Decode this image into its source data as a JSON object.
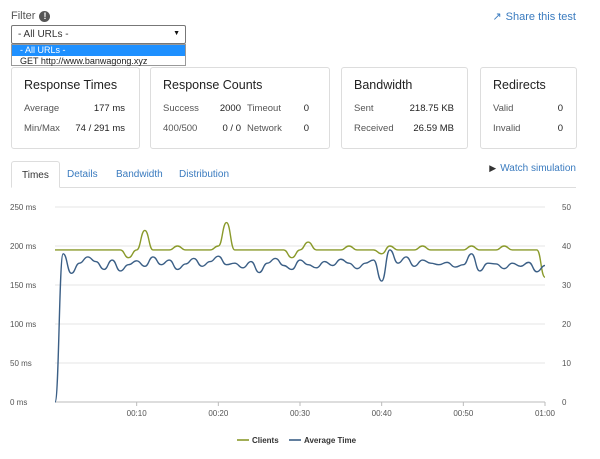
{
  "filter": {
    "label": "Filter",
    "info_icon": "exclamation-icon",
    "selected": "- All URLs -",
    "options": [
      "- All URLs -",
      "GET http://www.banwagong.xyz"
    ]
  },
  "share": {
    "label": "Share this test",
    "icon": "share-icon"
  },
  "cards": {
    "response_times": {
      "title": "Response Times",
      "average_label": "Average",
      "average_value": "177 ms",
      "minmax_label": "Min/Max",
      "minmax_value": "74 / 291 ms"
    },
    "response_counts": {
      "title": "Response Counts",
      "success_label": "Success",
      "success_value": "2000",
      "timeout_label": "Timeout",
      "timeout_value": "0",
      "errors_label": "400/500",
      "errors_value": "0 / 0",
      "network_label": "Network",
      "network_value": "0"
    },
    "bandwidth": {
      "title": "Bandwidth",
      "sent_label": "Sent",
      "sent_value": "218.75 KB",
      "received_label": "Received",
      "received_value": "26.59 MB"
    },
    "redirects": {
      "title": "Redirects",
      "valid_label": "Valid",
      "valid_value": "0",
      "invalid_label": "Invalid",
      "invalid_value": "0"
    }
  },
  "tabs": [
    "Times",
    "Details",
    "Bandwidth",
    "Distribution"
  ],
  "active_tab": "Times",
  "watch": {
    "label": "Watch simulation",
    "icon": "play-icon"
  },
  "chart_data": {
    "type": "line",
    "x_ticks": [
      "00:10",
      "00:20",
      "00:30",
      "00:40",
      "00:50",
      "01:00"
    ],
    "x_range": [
      0,
      60
    ],
    "y_left": {
      "ticks": [
        "0 ms",
        "50 ms",
        "100 ms",
        "150 ms",
        "200 ms",
        "250 ms"
      ],
      "range": [
        0,
        250
      ]
    },
    "y_right": {
      "ticks": [
        "0",
        "10",
        "20",
        "30",
        "40",
        "50"
      ],
      "range": [
        0,
        50
      ]
    },
    "grid": true,
    "legend_position": "bottom-center",
    "series": [
      {
        "name": "Clients",
        "axis": "right",
        "color": "#8a9a2b",
        "x": [
          0,
          1,
          2,
          3,
          4,
          5,
          6,
          7,
          8,
          9,
          10,
          11,
          12,
          13,
          14,
          15,
          16,
          17,
          18,
          19,
          20,
          21,
          22,
          23,
          24,
          25,
          26,
          27,
          28,
          29,
          30,
          31,
          32,
          33,
          34,
          35,
          36,
          37,
          38,
          39,
          40,
          41,
          42,
          43,
          44,
          45,
          46,
          47,
          48,
          49,
          50,
          51,
          52,
          53,
          54,
          55,
          56,
          57,
          58,
          59,
          60
        ],
        "values": [
          39,
          39,
          39,
          39,
          39,
          39,
          39,
          39,
          39,
          37,
          39,
          44,
          39,
          39,
          39,
          40,
          39,
          39,
          39,
          39,
          40,
          46,
          39,
          39,
          39,
          39,
          39,
          39,
          39,
          37,
          39,
          41,
          39,
          39,
          39,
          39,
          40,
          39,
          39,
          39,
          38,
          40,
          39,
          39,
          39,
          40,
          39,
          39,
          39,
          39,
          39,
          40,
          39,
          39,
          39,
          40,
          39,
          39,
          39,
          39,
          32
        ]
      },
      {
        "name": "Average Time",
        "axis": "left",
        "color": "#3b5f86",
        "x": [
          0,
          1,
          2,
          3,
          4,
          5,
          6,
          7,
          8,
          9,
          10,
          11,
          12,
          13,
          14,
          15,
          16,
          17,
          18,
          19,
          20,
          21,
          22,
          23,
          24,
          25,
          26,
          27,
          28,
          29,
          30,
          31,
          32,
          33,
          34,
          35,
          36,
          37,
          38,
          39,
          40,
          41,
          42,
          43,
          44,
          45,
          46,
          47,
          48,
          49,
          50,
          51,
          52,
          53,
          54,
          55,
          56,
          57,
          58,
          59,
          60
        ],
        "values": [
          0,
          190,
          165,
          178,
          186,
          180,
          170,
          182,
          168,
          176,
          181,
          174,
          186,
          176,
          182,
          170,
          177,
          184,
          174,
          180,
          187,
          176,
          178,
          172,
          180,
          166,
          178,
          184,
          175,
          170,
          182,
          176,
          172,
          180,
          175,
          183,
          178,
          171,
          178,
          182,
          155,
          195,
          178,
          186,
          174,
          182,
          178,
          176,
          179,
          173,
          176,
          190,
          168,
          178,
          177,
          171,
          178,
          174,
          179,
          167,
          175
        ]
      }
    ]
  }
}
